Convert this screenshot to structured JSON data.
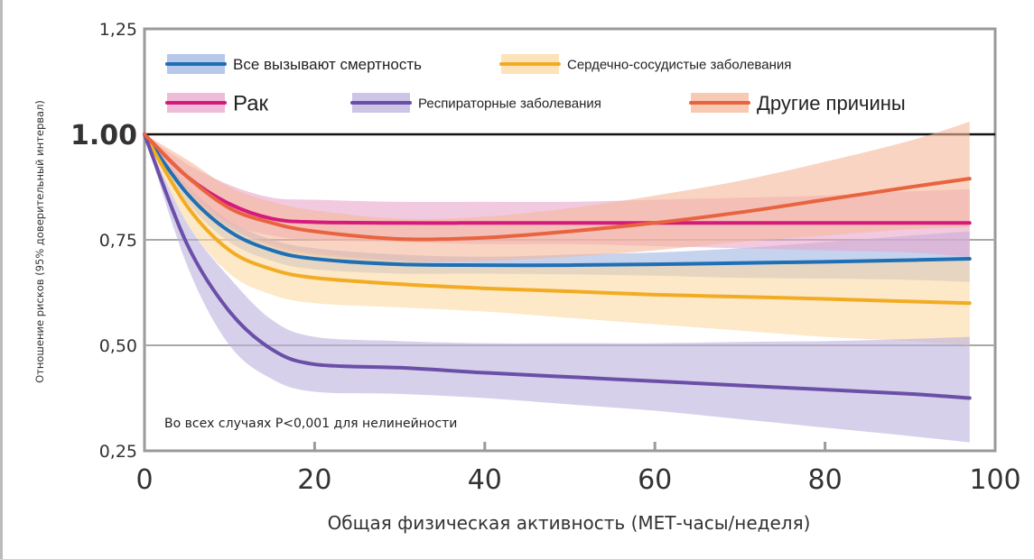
{
  "chart_data": {
    "type": "line",
    "xlabel": "Общая физическая активность (МЕТ-часы/неделя)",
    "ylabel": "Отношение рисков (95% доверительный интервал)",
    "xlim": [
      0,
      100
    ],
    "ylim": [
      0.25,
      1.25
    ],
    "xticks": [
      "0",
      "20",
      "40",
      "60",
      "80",
      "100"
    ],
    "xtick_values": [
      0,
      20,
      40,
      60,
      80,
      100
    ],
    "yticks": [
      "0,25",
      "0,50",
      "0,75",
      "1.00",
      "1,25"
    ],
    "ytick_values": [
      0.25,
      0.5,
      0.75,
      1.0,
      1.25
    ],
    "reference_line": 1.0,
    "grid": "horizontal",
    "legend_placement": "top",
    "annotation": "Во всех случаях P<0,001 для нелинейности",
    "x": [
      0,
      5,
      10,
      15,
      20,
      30,
      40,
      50,
      60,
      70,
      80,
      90,
      97
    ],
    "series": [
      {
        "name": "Все вызывают смертность",
        "color": "#1f6fb5",
        "band_color": "#9fb6e3",
        "values": [
          1.0,
          0.86,
          0.77,
          0.725,
          0.705,
          0.692,
          0.69,
          0.69,
          0.692,
          0.695,
          0.698,
          0.702,
          0.705
        ],
        "lower": [
          1.0,
          0.84,
          0.745,
          0.7,
          0.68,
          0.67,
          0.67,
          0.668,
          0.665,
          0.66,
          0.658,
          0.655,
          0.65
        ],
        "upper": [
          1.0,
          0.88,
          0.795,
          0.75,
          0.73,
          0.715,
          0.71,
          0.715,
          0.72,
          0.73,
          0.745,
          0.76,
          0.77
        ]
      },
      {
        "name": "Сердечно-сосудистые заболевания",
        "color": "#f2ac23",
        "band_color": "#fbd9a3",
        "values": [
          1.0,
          0.83,
          0.725,
          0.68,
          0.66,
          0.645,
          0.635,
          0.628,
          0.62,
          0.615,
          0.61,
          0.604,
          0.6
        ],
        "lower": [
          1.0,
          0.79,
          0.67,
          0.62,
          0.6,
          0.59,
          0.58,
          0.565,
          0.55,
          0.535,
          0.52,
          0.51,
          0.5
        ],
        "upper": [
          1.0,
          0.87,
          0.78,
          0.74,
          0.72,
          0.7,
          0.69,
          0.69,
          0.69,
          0.69,
          0.695,
          0.7,
          0.7
        ]
      },
      {
        "name": "Рак",
        "color": "#d6197d",
        "band_color": "#e8a6cc",
        "values": [
          1.0,
          0.9,
          0.835,
          0.8,
          0.792,
          0.79,
          0.79,
          0.79,
          0.79,
          0.79,
          0.79,
          0.79,
          0.79
        ],
        "lower": [
          1.0,
          0.87,
          0.79,
          0.76,
          0.75,
          0.745,
          0.74,
          0.74,
          0.735,
          0.73,
          0.725,
          0.72,
          0.71
        ],
        "upper": [
          1.0,
          0.93,
          0.88,
          0.85,
          0.845,
          0.84,
          0.84,
          0.84,
          0.845,
          0.85,
          0.855,
          0.865,
          0.87
        ]
      },
      {
        "name": "Респираторные заболевания",
        "color": "#6a4fa8",
        "band_color": "#bdb0de",
        "values": [
          1.0,
          0.74,
          0.58,
          0.49,
          0.455,
          0.447,
          0.435,
          0.425,
          0.415,
          0.405,
          0.395,
          0.385,
          0.375
        ],
        "lower": [
          1.0,
          0.69,
          0.5,
          0.42,
          0.39,
          0.385,
          0.375,
          0.36,
          0.345,
          0.325,
          0.305,
          0.285,
          0.27
        ],
        "upper": [
          1.0,
          0.79,
          0.66,
          0.56,
          0.52,
          0.51,
          0.505,
          0.505,
          0.505,
          0.508,
          0.51,
          0.515,
          0.52
        ]
      },
      {
        "name": "Другие причины",
        "color": "#e8643f",
        "band_color": "#f6b79a",
        "values": [
          1.0,
          0.9,
          0.825,
          0.79,
          0.77,
          0.752,
          0.755,
          0.77,
          0.79,
          0.815,
          0.845,
          0.875,
          0.895
        ],
        "lower": [
          1.0,
          0.86,
          0.78,
          0.735,
          0.715,
          0.7,
          0.7,
          0.71,
          0.725,
          0.745,
          0.76,
          0.775,
          0.78
        ],
        "upper": [
          1.0,
          0.94,
          0.875,
          0.84,
          0.82,
          0.8,
          0.805,
          0.825,
          0.855,
          0.89,
          0.935,
          0.985,
          1.03
        ]
      }
    ]
  }
}
